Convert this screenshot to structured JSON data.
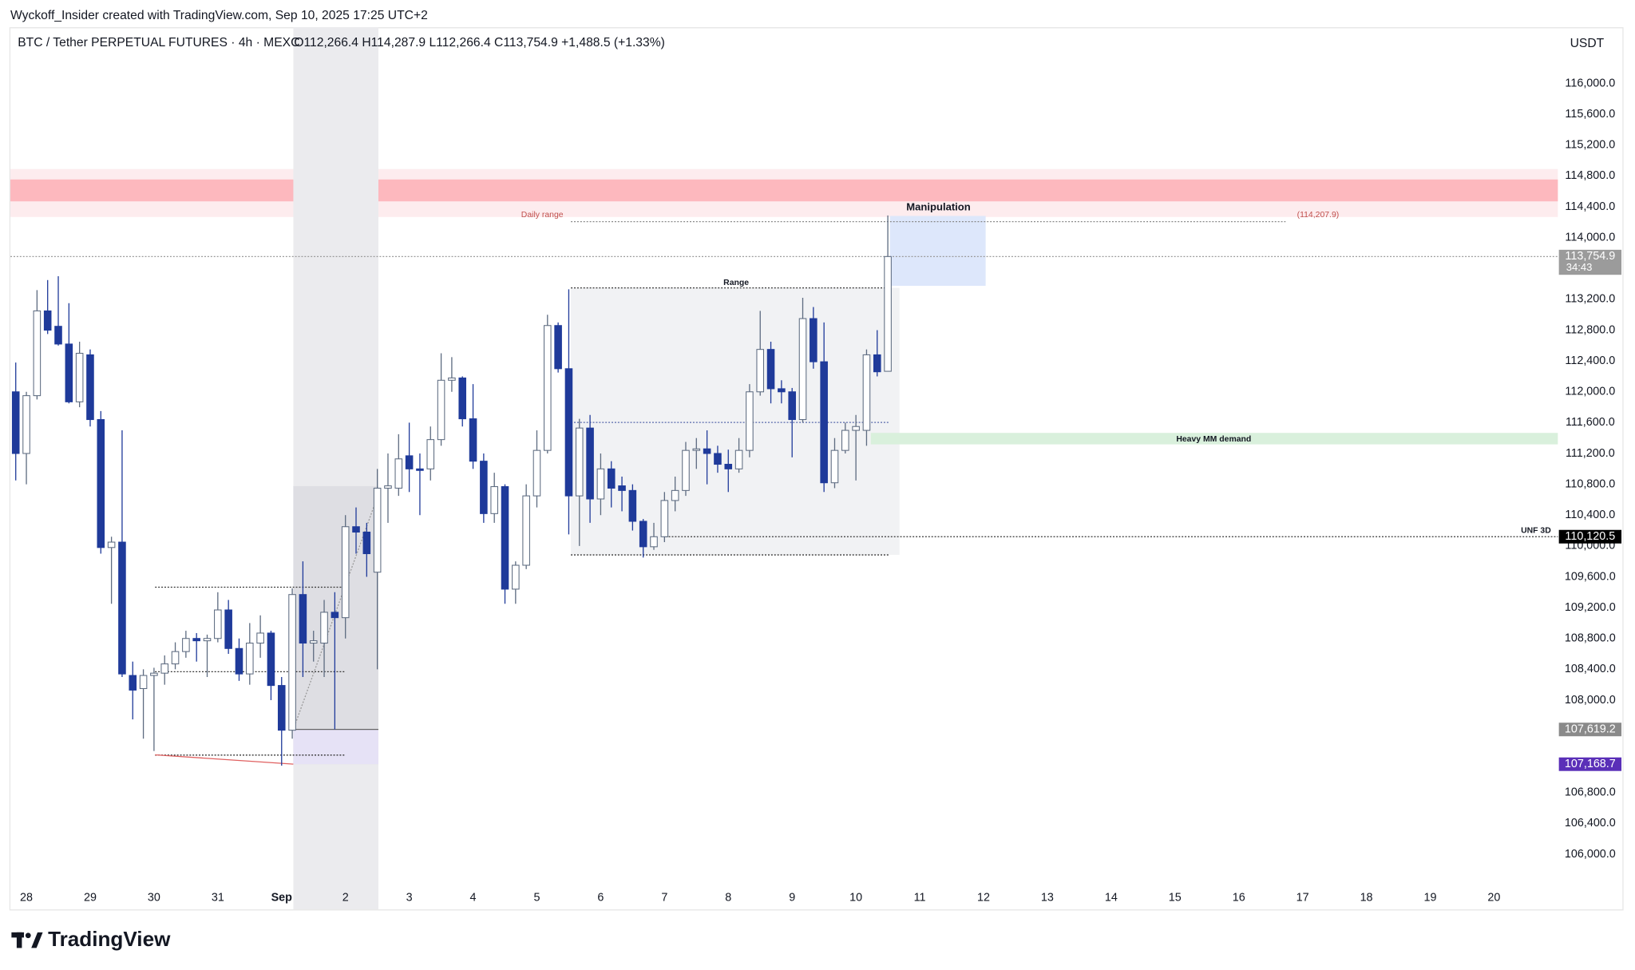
{
  "header": {
    "credit": "Wyckoff_Insider created with TradingView.com, Sep 10, 2025 17:25 UTC+2",
    "symbol": "BTC / Tether PERPETUAL FUTURES · 4h · MEXC",
    "ohlc": "O112,266.4  H114,287.9  L112,266.4  C113,754.9  +1,488.5 (+1.33%)",
    "currency": "USDT"
  },
  "footer": {
    "logo": "TradingView"
  },
  "chart_data": {
    "type": "candlestick",
    "up_color": "#ffffff",
    "up_border": "#5d6b80",
    "down_color": "#1f3a9a",
    "xlim": [
      -0.5,
      145
    ],
    "ylim": [
      105285,
      116730
    ],
    "xticks": [
      {
        "value": 1,
        "label": "28"
      },
      {
        "value": 7,
        "label": "29"
      },
      {
        "value": 13,
        "label": "30"
      },
      {
        "value": 19,
        "label": "31"
      },
      {
        "value": 25,
        "label": "Sep"
      },
      {
        "value": 31,
        "label": "2"
      },
      {
        "value": 37,
        "label": "3"
      },
      {
        "value": 43,
        "label": "4"
      },
      {
        "value": 49,
        "label": "5"
      },
      {
        "value": 55,
        "label": "6"
      },
      {
        "value": 61,
        "label": "7"
      },
      {
        "value": 67,
        "label": "8"
      },
      {
        "value": 73,
        "label": "9"
      },
      {
        "value": 79,
        "label": "10"
      },
      {
        "value": 85,
        "label": "11"
      },
      {
        "value": 91,
        "label": "12"
      },
      {
        "value": 97,
        "label": "13"
      },
      {
        "value": 103,
        "label": "14"
      },
      {
        "value": 109,
        "label": "15"
      },
      {
        "value": 115,
        "label": "16"
      },
      {
        "value": 121,
        "label": "17"
      },
      {
        "value": 127,
        "label": "18"
      },
      {
        "value": 133,
        "label": "19"
      },
      {
        "value": 139,
        "label": "20"
      }
    ],
    "yticks": [
      {
        "value": 116000,
        "label": "116,000.0"
      },
      {
        "value": 115600,
        "label": "115,600.0"
      },
      {
        "value": 115200,
        "label": "115,200.0"
      },
      {
        "value": 114800,
        "label": "114,800.0"
      },
      {
        "value": 114400,
        "label": "114,400.0"
      },
      {
        "value": 114000,
        "label": "114,000.0"
      },
      {
        "value": 113200,
        "label": "113,200.0"
      },
      {
        "value": 112800,
        "label": "112,800.0"
      },
      {
        "value": 112400,
        "label": "112,400.0"
      },
      {
        "value": 112000,
        "label": "112,000.0"
      },
      {
        "value": 111600,
        "label": "111,600.0"
      },
      {
        "value": 111200,
        "label": "111,200.0"
      },
      {
        "value": 110800,
        "label": "110,800.0"
      },
      {
        "value": 110400,
        "label": "110,400.0"
      },
      {
        "value": 110000,
        "label": "110,000.0"
      },
      {
        "value": 109600,
        "label": "109,600.0"
      },
      {
        "value": 109200,
        "label": "109,200.0"
      },
      {
        "value": 108800,
        "label": "108,800.0"
      },
      {
        "value": 108400,
        "label": "108,400.0"
      },
      {
        "value": 108000,
        "label": "108,000.0"
      },
      {
        "value": 106800,
        "label": "106,800.0"
      },
      {
        "value": 106400,
        "label": "106,400.0"
      },
      {
        "value": 106000,
        "label": "106,000.0"
      }
    ],
    "open": [
      112000,
      111200,
      111950,
      113050,
      112850,
      112620,
      111870,
      112480,
      111640,
      109980,
      110050,
      108320,
      108150,
      108320,
      108350,
      108470,
      108630,
      108800,
      108770,
      108800,
      109170,
      108670,
      108340,
      108740,
      108870,
      108190,
      107610,
      109370,
      108740,
      108740,
      109140,
      109070,
      110250,
      110180,
      109660,
      110750,
      110750,
      111170,
      111000,
      111000,
      111380,
      112150,
      112180,
      111650,
      111100,
      110420,
      110770,
      109440,
      109750,
      110650,
      111240,
      112860,
      112300,
      110650,
      111530,
      110610,
      111000,
      110780,
      110720,
      110320,
      109990,
      110120,
      110590,
      110720,
      111240,
      111260,
      111200,
      111060,
      111000,
      111240,
      112000,
      112550,
      112040,
      112000,
      111640,
      112950,
      112390,
      110820,
      111240,
      111500,
      111500,
      112480,
      112266.4
    ],
    "high": [
      112380,
      112000,
      113320,
      113450,
      113500,
      113150,
      112650,
      112550,
      111750,
      110120,
      111500,
      108500,
      108400,
      108420,
      108580,
      108750,
      108900,
      108870,
      108850,
      109400,
      109300,
      108800,
      109000,
      109100,
      108900,
      108300,
      109450,
      109800,
      108900,
      109300,
      109400,
      110400,
      110500,
      110300,
      111000,
      111200,
      111450,
      111600,
      111200,
      111550,
      112500,
      112450,
      112200,
      112100,
      111200,
      110950,
      110800,
      109800,
      110800,
      111500,
      113000,
      112900,
      113330,
      111650,
      111700,
      111200,
      111100,
      110900,
      110800,
      110350,
      110300,
      110700,
      110900,
      111350,
      111400,
      111500,
      111300,
      111250,
      111400,
      112100,
      113050,
      112650,
      112150,
      112050,
      113220,
      113100,
      112900,
      111400,
      111600,
      111700,
      112550,
      112800,
      114287.9
    ],
    "low": [
      110850,
      110800,
      111900,
      112750,
      112600,
      111850,
      111800,
      111550,
      109900,
      109250,
      108300,
      107750,
      107500,
      107340,
      108200,
      108400,
      108550,
      108500,
      108300,
      108750,
      108600,
      108250,
      108200,
      108550,
      108000,
      107150,
      107500,
      108300,
      108500,
      108300,
      107620,
      108800,
      109900,
      109600,
      108400,
      110300,
      110650,
      110700,
      110400,
      110850,
      111300,
      112000,
      111550,
      111000,
      110300,
      110300,
      109250,
      109250,
      109700,
      110500,
      111200,
      112250,
      110150,
      110000,
      110300,
      110400,
      110500,
      110450,
      110200,
      109850,
      109950,
      110050,
      110450,
      110650,
      111000,
      110800,
      110950,
      110700,
      110950,
      111150,
      111950,
      111850,
      111850,
      111150,
      111600,
      112300,
      110700,
      110750,
      111200,
      110850,
      111300,
      112200,
      112266.4
    ],
    "close": [
      111200,
      111950,
      113050,
      112800,
      112620,
      111870,
      112500,
      111640,
      109980,
      110050,
      108340,
      108130,
      108320,
      108350,
      108470,
      108630,
      108800,
      108770,
      108800,
      109170,
      108670,
      108340,
      108740,
      108870,
      108190,
      107610,
      109370,
      108740,
      108770,
      109140,
      109070,
      110250,
      110180,
      109900,
      110750,
      110780,
      111130,
      111000,
      110980,
      111380,
      112150,
      112180,
      111650,
      111100,
      110420,
      110770,
      109440,
      109750,
      110650,
      111240,
      112860,
      112300,
      110650,
      111530,
      110610,
      111000,
      110750,
      110720,
      110320,
      109990,
      110120,
      110590,
      110720,
      111240,
      111260,
      111200,
      111060,
      111000,
      111240,
      112000,
      112550,
      112040,
      112000,
      111640,
      112950,
      112390,
      110820,
      111240,
      111500,
      111550,
      112480,
      112260,
      113754.9
    ],
    "zones": [
      {
        "x": [
          -0.5,
          145
        ],
        "y": [
          114268,
          114890
        ],
        "color": "#fdecee"
      },
      {
        "x": [
          -0.5,
          145
        ],
        "y": [
          114471,
          114755
        ],
        "color": "#fdb8be"
      },
      {
        "x": [
          26.1,
          34.1
        ],
        "color": "#ebebee"
      },
      {
        "x": [
          26.1,
          34.1
        ],
        "y": [
          107170,
          110777
        ],
        "color": "#dedee3"
      },
      {
        "x": [
          26.1,
          34.1
        ],
        "y": [
          107170,
          107620
        ],
        "color": "#e6e2f6"
      },
      {
        "x": [
          52.2,
          83.1
        ],
        "y": [
          109884,
          113348
        ],
        "color": "#f1f2f4"
      },
      {
        "x": [
          82.2,
          91.2
        ],
        "y": [
          113375,
          114282
        ],
        "color": "#dde7fb"
      },
      {
        "x": [
          80.4,
          145
        ],
        "y": [
          111318,
          111467
        ],
        "color": "#d9f0dc"
      }
    ],
    "lines": [
      {
        "x": [
          52.2,
          119.4
        ],
        "y": [
          114207.9,
          114207.9
        ],
        "color": "#888888",
        "dash": true
      },
      {
        "x": [
          -0.5,
          145
        ],
        "y": [
          113754.9,
          113754.9
        ],
        "color": "#9a9a9a",
        "dash": true
      },
      {
        "x": [
          52.2,
          82.2
        ],
        "y": [
          113348,
          113348
        ],
        "color": "#333333",
        "dash": true
      },
      {
        "x": [
          52.2,
          82.2
        ],
        "y": [
          111603,
          111603
        ],
        "color": "#5566aa",
        "dash": true
      },
      {
        "x": [
          61.1,
          145
        ],
        "y": [
          110120.5,
          110120.5
        ],
        "color": "#333333",
        "dash": true
      },
      {
        "x": [
          52.2,
          82.2
        ],
        "y": [
          109884,
          109884
        ],
        "color": "#333333",
        "dash": true
      },
      {
        "x": [
          13.1,
          30.9
        ],
        "y": [
          109465,
          109465
        ],
        "color": "#333333",
        "dash": true
      },
      {
        "x": [
          13.1,
          30.9
        ],
        "y": [
          108369,
          108369
        ],
        "color": "#333333",
        "dash": true
      },
      {
        "x": [
          13.1,
          30.9
        ],
        "y": [
          107287,
          107287
        ],
        "color": "#333333",
        "dash": true
      },
      {
        "x": [
          13.1,
          26.1
        ],
        "y": [
          107290,
          107170
        ],
        "color": "#e06060",
        "dash": false
      },
      {
        "x": [
          26.1,
          34.3
        ],
        "y": [
          107620,
          110750
        ],
        "color": "#999999",
        "dash": true
      },
      {
        "x": [
          26.1,
          34.1
        ],
        "y": [
          107620,
          107620
        ],
        "color": "#666666",
        "dash": false
      }
    ],
    "labels": [
      {
        "text": "Daily range",
        "color": "#c0504d"
      },
      {
        "text": "(114,207.9)",
        "color": "#c0504d"
      },
      {
        "text": "Manipulation",
        "color": "#131722"
      },
      {
        "text": "Range",
        "color": "#131722"
      },
      {
        "text": "Heavy MM demand",
        "color": "#131722"
      },
      {
        "text": "UNF 3D",
        "color": "#131722"
      }
    ],
    "price_tags": [
      {
        "label": "113,754.9",
        "value": 113754.9,
        "color": "#9b9b9b",
        "countdown": "34:43"
      },
      {
        "label": "110,120.5",
        "value": 110120.5,
        "color": "#000000"
      },
      {
        "label": "107,619.2",
        "value": 107619.2,
        "color": "#8a8a8a"
      },
      {
        "label": "107,168.7",
        "value": 107168.7,
        "color": "#5a2fb8"
      }
    ]
  }
}
